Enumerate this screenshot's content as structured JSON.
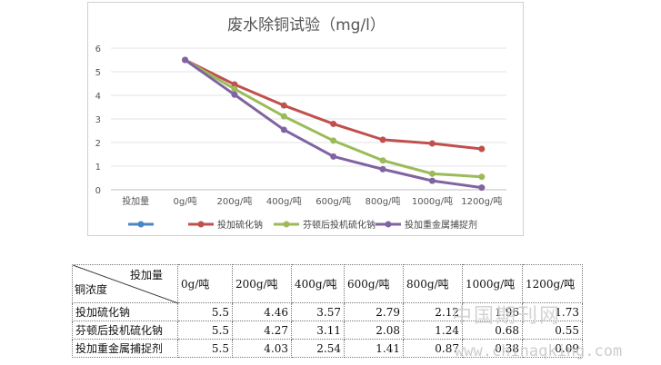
{
  "chart_data": {
    "type": "line",
    "title": "废水除铜试验（mg/l）",
    "categories": [
      "投加量",
      "0g/吨",
      "200g/吨",
      "400g/吨",
      "600g/吨",
      "800g/吨",
      "1000g/吨",
      "1200g/吨"
    ],
    "ylim": [
      0,
      6
    ],
    "yticks": [
      0,
      1,
      2,
      3,
      4,
      5,
      6
    ],
    "grid": true,
    "legend_position": "bottom",
    "series": [
      {
        "name": "",
        "color": "#4a86c5",
        "values": [
          null,
          null,
          null,
          null,
          null,
          null,
          null,
          null
        ]
      },
      {
        "name": "投加硫化钠",
        "color": "#c0504d",
        "values": [
          null,
          5.5,
          4.46,
          3.57,
          2.79,
          2.12,
          1.96,
          1.73
        ]
      },
      {
        "name": "芬顿后投机硫化钠",
        "color": "#9bbb59",
        "values": [
          null,
          5.5,
          4.27,
          3.11,
          2.08,
          1.24,
          0.68,
          0.55
        ]
      },
      {
        "name": "投加重金属捕捉剂",
        "color": "#8064a2",
        "values": [
          null,
          5.5,
          4.03,
          2.54,
          1.41,
          0.87,
          0.38,
          0.09
        ]
      }
    ]
  },
  "table": {
    "header_top": "投加量",
    "header_bottom": "铜浓度",
    "columns": [
      "0g/吨",
      "200g/吨",
      "400g/吨",
      "600g/吨",
      "800g/吨",
      "1000g/吨",
      "1200g/吨"
    ],
    "rows": [
      {
        "label": "投加硫化钠",
        "values": [
          "5.5",
          "4.46",
          "3.57",
          "2.79",
          "2.12",
          "1.96",
          "1.73"
        ]
      },
      {
        "label": "芬顿后投机硫化钠",
        "values": [
          "5.5",
          "4.27",
          "3.11",
          "2.08",
          "1.24",
          "0.68",
          "0.55"
        ]
      },
      {
        "label": "投加重金属捕捉剂",
        "values": [
          "5.5",
          "4.03",
          "2.54",
          "1.41",
          "0.87",
          "0.38",
          "0.09"
        ]
      }
    ]
  },
  "watermark": {
    "text": "中国期刊网",
    "url": "www.chinaqking.com"
  }
}
